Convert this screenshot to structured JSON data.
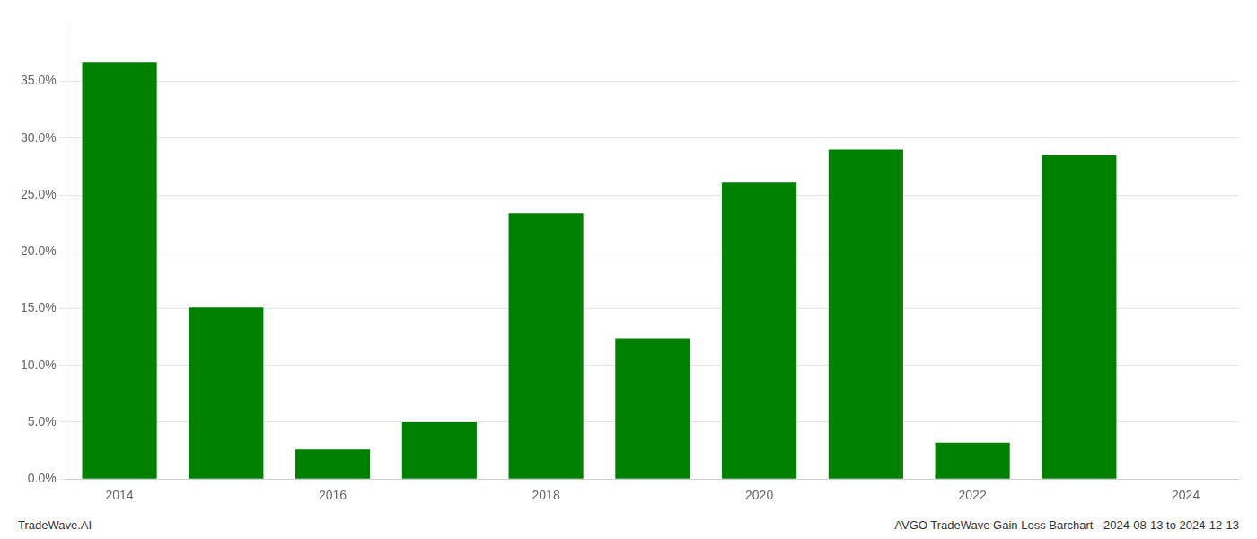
{
  "chart_data": {
    "type": "bar",
    "categories": [
      "2014",
      null,
      "2016",
      null,
      "2018",
      null,
      "2020",
      null,
      "2022",
      null,
      "2024"
    ],
    "values": [
      0.367,
      0.151,
      0.026,
      0.05,
      0.234,
      0.124,
      0.261,
      0.29,
      0.032,
      0.285,
      0.0
    ],
    "color": "#008000",
    "ylim": [
      0.0,
      0.4
    ],
    "yticks": [
      {
        "value": 0.0,
        "label": "0.0%"
      },
      {
        "value": 0.05,
        "label": "5.0%"
      },
      {
        "value": 0.1,
        "label": "10.0%"
      },
      {
        "value": 0.15,
        "label": "15.0%"
      },
      {
        "value": 0.2,
        "label": "20.0%"
      },
      {
        "value": 0.25,
        "label": "25.0%"
      },
      {
        "value": 0.3,
        "label": "30.0%"
      },
      {
        "value": 0.35,
        "label": "35.0%"
      }
    ],
    "grid": true,
    "annotations": [
      "TradeWave.AI",
      "AVGO TradeWave Gain Loss Barchart - 2024-08-13 to 2024-12-13"
    ]
  }
}
